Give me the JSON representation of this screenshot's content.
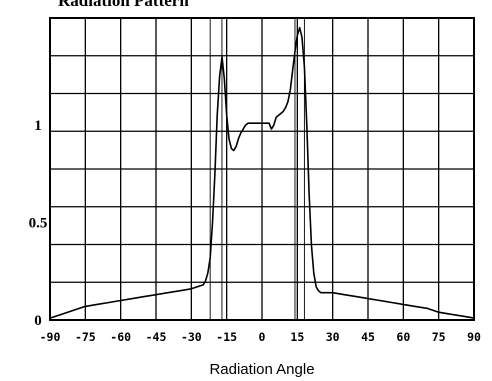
{
  "chart_data": {
    "type": "line",
    "title": "Radiation Pattern",
    "xlabel": "Radiation Angle",
    "ylabel": "",
    "xlim": [
      -90,
      90
    ],
    "ylim": [
      0,
      1.55
    ],
    "x_ticks": [
      -90,
      -75,
      -60,
      -45,
      -30,
      -15,
      0,
      15,
      30,
      45,
      60,
      75,
      90
    ],
    "x_tick_labels": [
      "-90",
      "-75",
      "-60",
      "-45",
      "-30",
      "-15",
      "0",
      "15",
      "30",
      "45",
      "60",
      "75",
      "90"
    ],
    "y_ticks": [
      0,
      0.5,
      1
    ],
    "y_tick_labels": [
      "0",
      "0.5",
      "1"
    ],
    "grid": true,
    "markers_x": [
      -22,
      -17,
      14,
      18
    ],
    "series": [
      {
        "color": "#000000",
        "x": [
          -90,
          -85,
          -80,
          -75,
          -70,
          -65,
          -60,
          -55,
          -50,
          -45,
          -40,
          -35,
          -30,
          -25,
          -24,
          -23,
          -22,
          -21,
          -20,
          -19,
          -18,
          -17,
          -16,
          -15,
          -14,
          -13,
          -12,
          -11,
          -10,
          -9,
          -8,
          -7,
          -6,
          -5,
          -4,
          -3,
          -2,
          -1,
          0,
          1,
          2,
          3,
          4,
          5,
          6,
          7,
          8,
          9,
          10,
          11,
          12,
          13,
          14,
          15,
          16,
          17,
          18,
          19,
          20,
          21,
          22,
          23,
          24,
          25,
          27,
          30,
          35,
          40,
          45,
          50,
          55,
          60,
          65,
          70,
          75,
          80,
          85,
          90
        ],
        "y": [
          0.01,
          0.03,
          0.05,
          0.07,
          0.08,
          0.09,
          0.1,
          0.11,
          0.12,
          0.13,
          0.14,
          0.15,
          0.16,
          0.18,
          0.2,
          0.24,
          0.32,
          0.5,
          0.75,
          1.05,
          1.25,
          1.35,
          1.24,
          1.05,
          0.93,
          0.88,
          0.87,
          0.89,
          0.93,
          0.96,
          0.98,
          1.0,
          1.01,
          1.01,
          1.01,
          1.01,
          1.01,
          1.01,
          1.01,
          1.01,
          1.01,
          1.01,
          0.98,
          1.0,
          1.04,
          1.05,
          1.06,
          1.07,
          1.09,
          1.12,
          1.18,
          1.28,
          1.38,
          1.46,
          1.5,
          1.45,
          1.3,
          1.0,
          0.65,
          0.38,
          0.24,
          0.17,
          0.15,
          0.14,
          0.14,
          0.14,
          0.13,
          0.12,
          0.11,
          0.1,
          0.09,
          0.08,
          0.07,
          0.06,
          0.04,
          0.03,
          0.02,
          0.01
        ]
      }
    ]
  }
}
